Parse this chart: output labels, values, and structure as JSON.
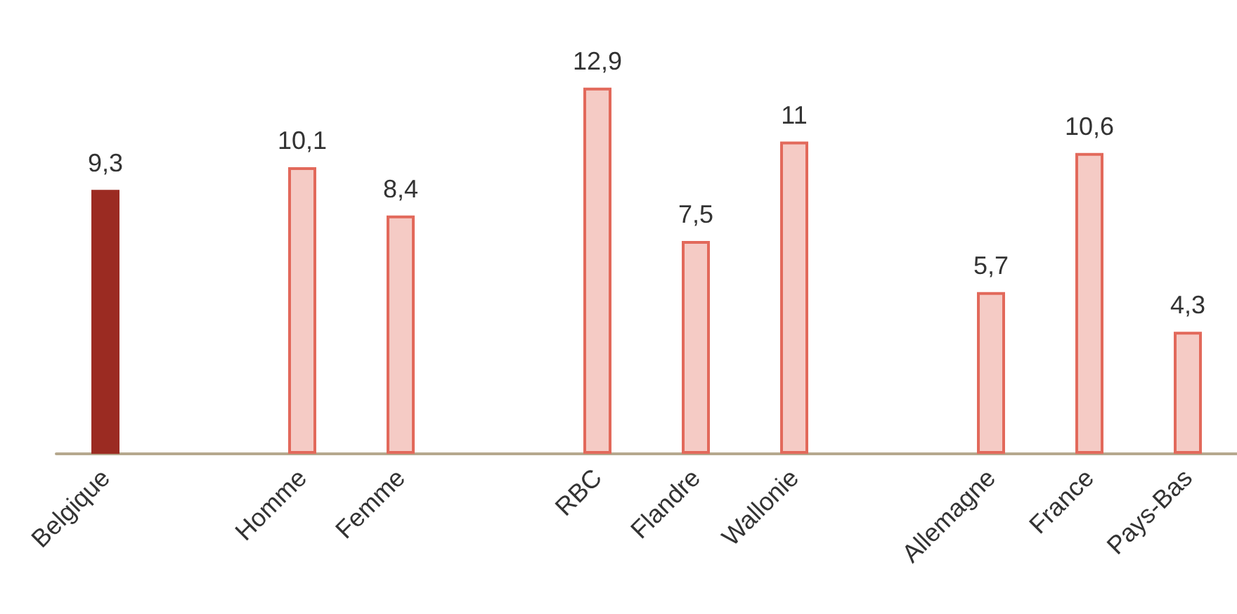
{
  "chart_data": {
    "type": "bar",
    "categories": [
      "Belgique",
      null,
      "Homme",
      "Femme",
      null,
      "RBC",
      "Flandre",
      "Wallonie",
      null,
      "Allemagne",
      "France",
      "Pays-Bas"
    ],
    "values": [
      9.3,
      null,
      10.1,
      8.4,
      null,
      12.9,
      7.5,
      11,
      null,
      5.7,
      10.6,
      4.3
    ],
    "value_labels": [
      "9,3",
      null,
      "10,1",
      "8,4",
      null,
      "12,9",
      "7,5",
      "11",
      null,
      "5,7",
      "10,6",
      "4,3"
    ],
    "colors": [
      "#9b2b22",
      null,
      "#f5cbc5",
      "#f5cbc5",
      null,
      "#f5cbc5",
      "#f5cbc5",
      "#f5cbc5",
      null,
      "#f5cbc5",
      "#f5cbc5",
      "#f5cbc5"
    ]
  }
}
